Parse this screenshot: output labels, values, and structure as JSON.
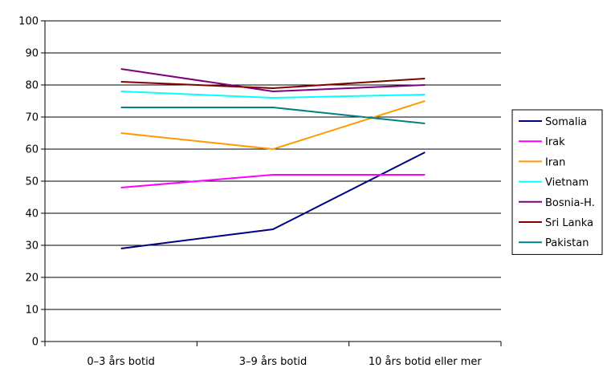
{
  "chart_data": {
    "type": "line",
    "title": "",
    "xlabel": "",
    "ylabel": "",
    "categories": [
      "0–3 års botid",
      "3–9 års botid",
      "10 års botid eller mer"
    ],
    "ylim": [
      0,
      100
    ],
    "yticks": [
      0,
      10,
      20,
      30,
      40,
      50,
      60,
      70,
      80,
      90,
      100
    ],
    "grid": "horizontal",
    "legend_position": "right",
    "series": [
      {
        "name": "Somalia",
        "color": "#000080",
        "values": [
          29,
          35,
          59
        ]
      },
      {
        "name": "Irak",
        "color": "#FF00FF",
        "values": [
          48,
          52,
          52
        ]
      },
      {
        "name": "Iran",
        "color": "#FF9900",
        "values": [
          65,
          60,
          75
        ]
      },
      {
        "name": "Vietnam",
        "color": "#00FFFF",
        "values": [
          78,
          76,
          77
        ]
      },
      {
        "name": "Bosnia-H.",
        "color": "#800080",
        "values": [
          85,
          78,
          80
        ]
      },
      {
        "name": "Sri Lanka",
        "color": "#800000",
        "values": [
          81,
          79,
          82
        ]
      },
      {
        "name": "Pakistan",
        "color": "#008080",
        "values": [
          73,
          73,
          68
        ]
      }
    ]
  }
}
